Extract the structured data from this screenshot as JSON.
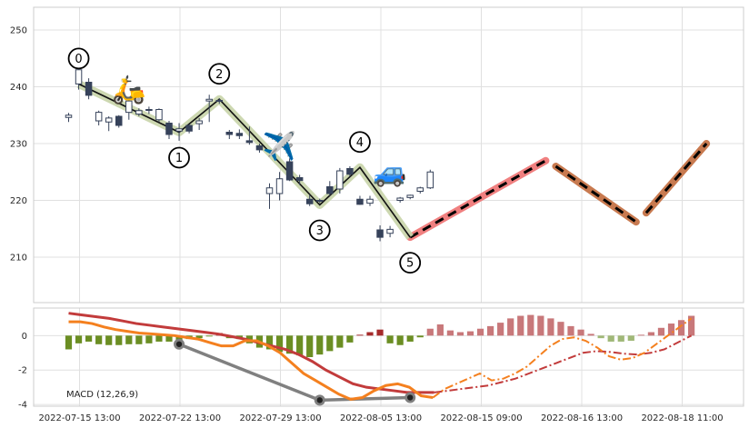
{
  "chart_data": {
    "type": "candlestick",
    "x_tick_labels": [
      "2022-07-15 13:00",
      "2022-07-22 13:00",
      "2022-07-29 13:00",
      "2022-08-05 13:00",
      "2022-08-15 09:00",
      "2022-08-16 13:00",
      "2022-08-18 11:00"
    ],
    "price_axis": {
      "ylim": [
        202,
        254
      ],
      "ticks": [
        210,
        220,
        230,
        240,
        250
      ]
    },
    "candles": [
      {
        "o": 234.6,
        "h": 235.4,
        "l": 233.8,
        "c": 235.0
      },
      {
        "o": 240.5,
        "h": 243.0,
        "l": 239.5,
        "c": 243.0
      },
      {
        "o": 240.8,
        "h": 241.5,
        "l": 237.8,
        "c": 238.5
      },
      {
        "o": 234.0,
        "h": 235.8,
        "l": 233.2,
        "c": 235.5
      },
      {
        "o": 233.8,
        "h": 234.8,
        "l": 232.2,
        "c": 234.5
      },
      {
        "o": 234.8,
        "h": 235.0,
        "l": 232.8,
        "c": 233.2
      },
      {
        "o": 235.5,
        "h": 238.0,
        "l": 234.2,
        "c": 237.5
      },
      {
        "o": 235.2,
        "h": 236.2,
        "l": 234.8,
        "c": 235.8
      },
      {
        "o": 236.0,
        "h": 236.5,
        "l": 235.2,
        "c": 235.9
      },
      {
        "o": 234.2,
        "h": 236.2,
        "l": 233.8,
        "c": 236.0
      },
      {
        "o": 233.6,
        "h": 234.0,
        "l": 230.8,
        "c": 231.6
      },
      {
        "o": 232.2,
        "h": 233.6,
        "l": 230.5,
        "c": 232.6
      },
      {
        "o": 233.2,
        "h": 233.4,
        "l": 231.8,
        "c": 232.2
      },
      {
        "o": 233.5,
        "h": 234.5,
        "l": 232.4,
        "c": 234.0
      },
      {
        "o": 237.5,
        "h": 238.6,
        "l": 233.8,
        "c": 237.8
      },
      {
        "o": 237.6,
        "h": 238.0,
        "l": 237.0,
        "c": 237.5
      },
      {
        "o": 232.0,
        "h": 232.4,
        "l": 230.8,
        "c": 231.6
      },
      {
        "o": 231.8,
        "h": 232.5,
        "l": 230.8,
        "c": 231.4
      },
      {
        "o": 230.5,
        "h": 233.0,
        "l": 229.8,
        "c": 230.2
      },
      {
        "o": 229.6,
        "h": 230.0,
        "l": 228.4,
        "c": 228.9
      },
      {
        "o": 221.2,
        "h": 223.0,
        "l": 218.5,
        "c": 222.2
      },
      {
        "o": 221.2,
        "h": 225.0,
        "l": 220.0,
        "c": 223.8
      },
      {
        "o": 226.8,
        "h": 227.4,
        "l": 223.4,
        "c": 223.6
      },
      {
        "o": 224.0,
        "h": 224.5,
        "l": 222.7,
        "c": 223.5
      },
      {
        "o": 220.2,
        "h": 221.0,
        "l": 219.0,
        "c": 219.4
      },
      {
        "o": 219.9,
        "h": 220.3,
        "l": 219.5,
        "c": 220.0
      },
      {
        "o": 222.4,
        "h": 223.4,
        "l": 220.8,
        "c": 221.2
      },
      {
        "o": 222.0,
        "h": 225.7,
        "l": 221.2,
        "c": 225.2
      },
      {
        "o": 225.6,
        "h": 226.0,
        "l": 224.2,
        "c": 224.6
      },
      {
        "o": 220.2,
        "h": 220.8,
        "l": 219.2,
        "c": 219.3
      },
      {
        "o": 219.5,
        "h": 220.8,
        "l": 219.0,
        "c": 220.2
      },
      {
        "o": 214.8,
        "h": 215.6,
        "l": 212.8,
        "c": 213.5
      },
      {
        "o": 214.2,
        "h": 215.5,
        "l": 213.5,
        "c": 214.9
      },
      {
        "o": 220.0,
        "h": 220.6,
        "l": 219.6,
        "c": 220.4
      },
      {
        "o": 220.5,
        "h": 221.0,
        "l": 220.2,
        "c": 220.9
      },
      {
        "o": 221.6,
        "h": 222.4,
        "l": 221.2,
        "c": 222.2
      },
      {
        "o": 222.2,
        "h": 225.4,
        "l": 222.0,
        "c": 225.0
      }
    ],
    "zigzag": {
      "points": [
        {
          "i": 1,
          "v": 240.5
        },
        {
          "i": 11,
          "v": 232.0
        },
        {
          "i": 15,
          "v": 237.8
        },
        {
          "i": 25,
          "v": 219.2
        },
        {
          "i": 29,
          "v": 225.8
        },
        {
          "i": 34,
          "v": 213.5
        }
      ],
      "labels": [
        "0",
        "1",
        "2",
        "3",
        "4",
        "5"
      ],
      "label_positions": [
        "above",
        "below",
        "above",
        "below",
        "above",
        "below"
      ]
    },
    "projections": [
      {
        "from": {
          "i": 34,
          "v": 213.5
        },
        "to": {
          "i": 47.5,
          "v": 227.0
        },
        "color": "#f08080"
      },
      {
        "from": {
          "i": 48.5,
          "v": 226.0
        },
        "to": {
          "i": 56.5,
          "v": 216.2
        },
        "color": "#c87a50"
      },
      {
        "from": {
          "i": 57.5,
          "v": 217.8
        },
        "to": {
          "i": 63.5,
          "v": 230.0
        },
        "color": "#c87a50"
      }
    ],
    "emojis": [
      {
        "char": "🛵",
        "i": 6,
        "v": 239.5
      },
      {
        "char": "✈️",
        "i": 21,
        "v": 229.5
      },
      {
        "char": "🚙",
        "i": 32,
        "v": 225.0
      }
    ],
    "macd_axis": {
      "ylim": [
        -4.1,
        1.6
      ],
      "ticks": [
        0,
        -2,
        -4
      ],
      "title": "MACD (12,26,9)"
    },
    "histogram": [
      -0.8,
      -0.45,
      -0.35,
      -0.5,
      -0.55,
      -0.55,
      -0.5,
      -0.5,
      -0.45,
      -0.35,
      -0.35,
      -0.3,
      -0.2,
      -0.15,
      -0.05,
      0.15,
      -0.15,
      -0.2,
      -0.45,
      -0.7,
      -0.8,
      -0.95,
      -1.05,
      -1.15,
      -1.25,
      -1.1,
      -0.9,
      -0.7,
      -0.4,
      0.05,
      0.2,
      0.35,
      -0.45,
      -0.55,
      -0.35,
      -0.1,
      0.4,
      0.65,
      0.3,
      0.2,
      0.25,
      0.4,
      0.55,
      0.75,
      1.0,
      1.15,
      1.2,
      1.15,
      1.0,
      0.8,
      0.55,
      0.35,
      0.1,
      -0.15,
      -0.35,
      -0.35,
      -0.3,
      0.05,
      0.2,
      0.45,
      0.7,
      0.9,
      1.15
    ],
    "macd_line": [
      0.8,
      0.8,
      0.7,
      0.5,
      0.35,
      0.25,
      0.15,
      0.1,
      0.05,
      0.0,
      -0.1,
      -0.2,
      -0.4,
      -0.6,
      -0.6,
      -0.3,
      -0.3,
      -0.6,
      -1.0,
      -1.6,
      -2.2,
      -2.6,
      -3.0,
      -3.4,
      -3.7,
      -3.6,
      -3.2,
      -2.9,
      -2.8,
      -3.0,
      -3.5,
      -3.6,
      -3.1,
      -2.8,
      -2.5,
      -2.2,
      -2.6,
      -2.5,
      -2.2,
      -1.8,
      -1.2,
      -0.6,
      -0.2,
      -0.1,
      -0.3,
      -0.7,
      -1.2,
      -1.4,
      -1.3,
      -1.0,
      -0.5,
      0.0,
      0.5,
      1.0
    ],
    "signal_line": [
      1.3,
      1.2,
      1.1,
      1.0,
      0.85,
      0.7,
      0.6,
      0.5,
      0.4,
      0.3,
      0.2,
      0.1,
      -0.05,
      -0.2,
      -0.4,
      -0.6,
      -0.8,
      -1.1,
      -1.5,
      -2.0,
      -2.4,
      -2.8,
      -3.0,
      -3.1,
      -3.2,
      -3.3,
      -3.3,
      -3.3,
      -3.2,
      -3.1,
      -3.0,
      -2.9,
      -2.7,
      -2.5,
      -2.2,
      -1.9,
      -1.6,
      -1.3,
      -1.0,
      -0.9,
      -0.95,
      -1.05,
      -1.1,
      -1.0,
      -0.8,
      -0.4,
      0.0
    ],
    "macd_line_dashed_from": 36,
    "divergence_points": [
      {
        "i": 11,
        "v": -0.5
      },
      {
        "i": 25,
        "v": -3.75
      },
      {
        "i": 34,
        "v": -3.6
      }
    ]
  }
}
